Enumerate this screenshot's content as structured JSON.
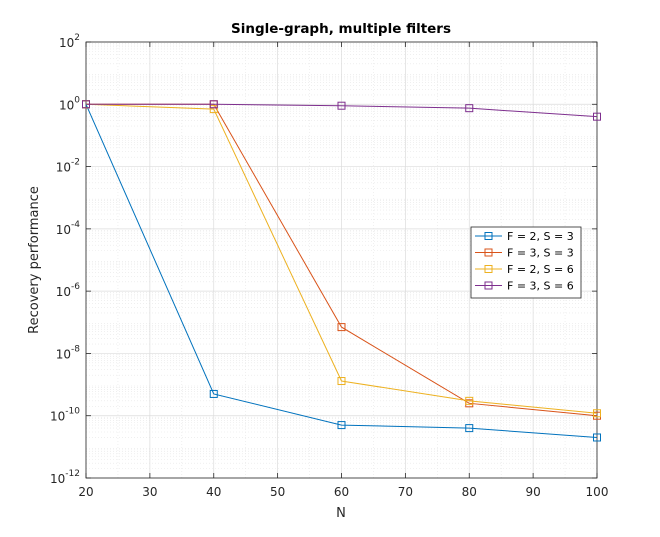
{
  "chart_data": {
    "type": "line",
    "title": "Single-graph, multiple filters",
    "xlabel": "N",
    "ylabel": "Recovery performance",
    "xlim": [
      20,
      100
    ],
    "ylim": [
      1e-12,
      100
    ],
    "yscale": "log",
    "grid": true,
    "minor_grid": true,
    "legend_position": "right",
    "x_ticks": [
      20,
      30,
      40,
      50,
      60,
      70,
      80,
      90,
      100
    ],
    "y_ticks": [
      {
        "base": "10",
        "exp": "-12"
      },
      {
        "base": "10",
        "exp": "-10"
      },
      {
        "base": "10",
        "exp": "-8"
      },
      {
        "base": "10",
        "exp": "-6"
      },
      {
        "base": "10",
        "exp": "-4"
      },
      {
        "base": "10",
        "exp": "-2"
      },
      {
        "base": "10",
        "exp": "0"
      },
      {
        "base": "10",
        "exp": "2"
      }
    ],
    "x": [
      20,
      40,
      60,
      80,
      100
    ],
    "series": [
      {
        "name": "F = 2, S = 3",
        "color": "#0072BD",
        "values": [
          1.0,
          5e-10,
          5e-11,
          4e-11,
          2e-11
        ]
      },
      {
        "name": "F = 3, S = 3",
        "color": "#D95319",
        "values": [
          1.0,
          1.0,
          7e-08,
          2.5e-10,
          1e-10
        ]
      },
      {
        "name": "F = 2, S = 6",
        "color": "#EDB120",
        "values": [
          1.0,
          0.7,
          1.3e-09,
          3e-10,
          1.2e-10
        ]
      },
      {
        "name": "F = 3, S = 6",
        "color": "#7E2F8E",
        "values": [
          1.0,
          1.0,
          0.9,
          0.75,
          0.4
        ]
      }
    ],
    "marker": "square"
  }
}
